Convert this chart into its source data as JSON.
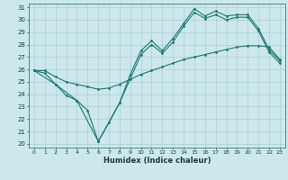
{
  "xlabel": "Humidex (Indice chaleur)",
  "xlim": [
    -0.5,
    23.5
  ],
  "ylim": [
    19.7,
    31.3
  ],
  "yticks": [
    20,
    21,
    22,
    23,
    24,
    25,
    26,
    27,
    28,
    29,
    30,
    31
  ],
  "xticks": [
    0,
    1,
    2,
    3,
    4,
    5,
    6,
    7,
    8,
    9,
    10,
    11,
    12,
    13,
    14,
    15,
    16,
    17,
    18,
    19,
    20,
    21,
    22,
    23
  ],
  "background_color": "#cde8ec",
  "grid_color": "#a8cdd4",
  "line_color": "#1a7a6e",
  "line1_x": [
    0,
    1,
    2,
    3,
    4,
    5,
    6,
    7,
    8,
    9,
    10,
    11,
    12,
    13,
    14,
    15,
    16,
    17,
    18,
    19,
    20,
    21,
    22,
    23
  ],
  "line1_y": [
    25.9,
    25.7,
    24.8,
    23.9,
    23.5,
    22.7,
    20.2,
    21.7,
    23.3,
    25.6,
    27.5,
    28.3,
    27.5,
    28.5,
    29.7,
    30.9,
    30.3,
    30.7,
    30.3,
    30.4,
    30.4,
    29.3,
    27.6,
    26.7
  ],
  "line2_x": [
    0,
    2,
    4,
    6,
    8,
    10,
    11,
    12,
    13,
    14,
    15,
    16,
    17,
    18,
    19,
    20,
    21,
    22,
    23
  ],
  "line2_y": [
    25.9,
    24.8,
    23.5,
    20.2,
    23.3,
    27.2,
    28.0,
    27.3,
    28.2,
    29.5,
    30.6,
    30.1,
    30.4,
    30.0,
    30.2,
    30.2,
    29.1,
    27.4,
    26.5
  ],
  "line3_x": [
    0,
    1,
    2,
    3,
    4,
    5,
    6,
    7,
    8,
    9,
    10,
    11,
    12,
    13,
    14,
    15,
    16,
    17,
    18,
    19,
    20,
    21,
    22,
    23
  ],
  "line3_y": [
    25.9,
    25.9,
    25.4,
    25.0,
    24.8,
    24.6,
    24.4,
    24.5,
    24.8,
    25.2,
    25.6,
    25.9,
    26.2,
    26.5,
    26.8,
    27.0,
    27.2,
    27.4,
    27.6,
    27.8,
    27.9,
    27.9,
    27.8,
    26.8
  ]
}
